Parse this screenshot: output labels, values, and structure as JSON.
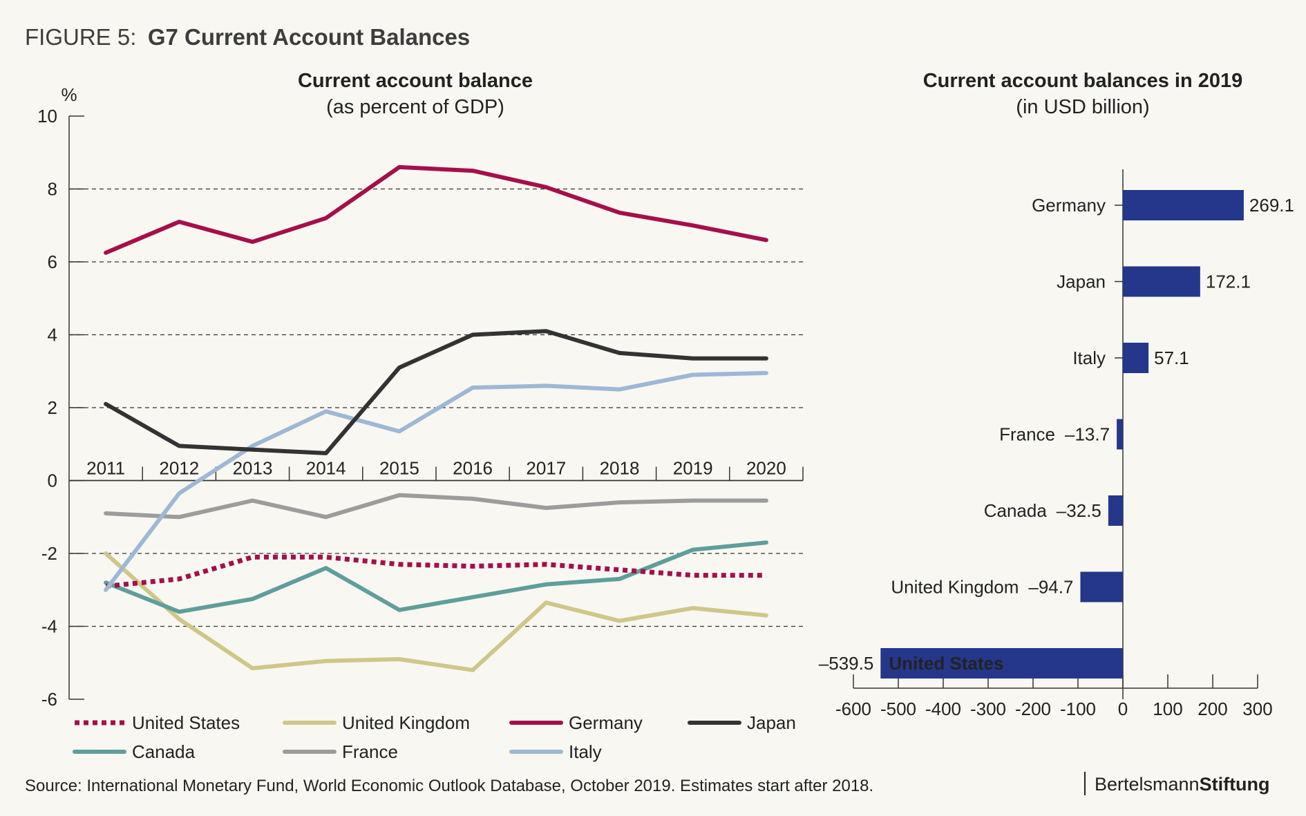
{
  "figure": {
    "prefix": "FIGURE 5:",
    "title": "G7 Current Account Balances"
  },
  "source": "Source: International Monetary Fund, World Economic Outlook Database, October 2019. Estimates start after 2018.",
  "brand": {
    "regular": "Bertelsmann",
    "bold": "Stiftung"
  },
  "colors": {
    "united_states": "#a50f4a",
    "united_kingdom": "#cfc788",
    "germany": "#a50f4a",
    "japan": "#333333",
    "canada": "#5e9e9b",
    "france": "#9c9c9a",
    "italy": "#9db8d5",
    "bar": "#24378a"
  },
  "chart_data": [
    {
      "type": "line",
      "title": "Current account balance",
      "subtitle": "(as percent of GDP)",
      "ylabel": "%",
      "ylim": [
        -6,
        10
      ],
      "yticks": [
        10,
        8,
        6,
        4,
        2,
        0,
        -2,
        -4,
        -6
      ],
      "grid": "dashed horizontal at 8, 6, 4, 2, -2, -4",
      "legend": "bottom",
      "x": [
        "2011",
        "2012",
        "2013",
        "2014",
        "2015",
        "2016",
        "2017",
        "2018",
        "2019",
        "2020"
      ],
      "series": [
        {
          "name": "United States",
          "key": "united_states",
          "style": "dotted",
          "values": [
            -2.9,
            -2.7,
            -2.1,
            -2.1,
            -2.3,
            -2.35,
            -2.3,
            -2.45,
            -2.6,
            -2.6
          ]
        },
        {
          "name": "United Kingdom",
          "key": "united_kingdom",
          "style": "solid",
          "values": [
            -2.0,
            -3.8,
            -5.15,
            -4.95,
            -4.9,
            -5.2,
            -3.35,
            -3.85,
            -3.5,
            -3.7
          ]
        },
        {
          "name": "Germany",
          "key": "germany",
          "style": "solid",
          "values": [
            6.25,
            7.1,
            6.55,
            7.2,
            8.6,
            8.5,
            8.05,
            7.35,
            7.0,
            6.6
          ]
        },
        {
          "name": "Japan",
          "key": "japan",
          "style": "solid",
          "values": [
            2.1,
            0.95,
            0.85,
            0.75,
            3.1,
            4.0,
            4.1,
            3.5,
            3.35,
            3.35
          ]
        },
        {
          "name": "Canada",
          "key": "canada",
          "style": "solid",
          "values": [
            -2.8,
            -3.6,
            -3.25,
            -2.4,
            -3.55,
            -3.2,
            -2.85,
            -2.7,
            -1.9,
            -1.7
          ]
        },
        {
          "name": "France",
          "key": "france",
          "style": "solid",
          "values": [
            -0.9,
            -1.0,
            -0.55,
            -1.0,
            -0.4,
            -0.5,
            -0.75,
            -0.6,
            -0.55,
            -0.55
          ]
        },
        {
          "name": "Italy",
          "key": "italy",
          "style": "solid",
          "values": [
            -3.0,
            -0.35,
            0.95,
            1.9,
            1.35,
            2.55,
            2.6,
            2.5,
            2.9,
            2.95
          ]
        }
      ]
    },
    {
      "type": "bar",
      "orientation": "horizontal",
      "title": "Current account balances in 2019",
      "subtitle": "(in USD billion)",
      "xlim": [
        -600,
        300
      ],
      "xticks": [
        -600,
        -500,
        -400,
        -300,
        -200,
        -100,
        0,
        100,
        200,
        300
      ],
      "categories": [
        "Germany",
        "Japan",
        "Italy",
        "France",
        "Canada",
        "United Kingdom",
        "United States"
      ],
      "values": [
        269.1,
        172.1,
        57.1,
        -13.7,
        -32.5,
        -94.7,
        -539.5
      ],
      "value_labels": [
        "269.1",
        "172.1",
        "57.1",
        "–13.7",
        "–32.5",
        "–94.7",
        "–539.5"
      ]
    }
  ]
}
